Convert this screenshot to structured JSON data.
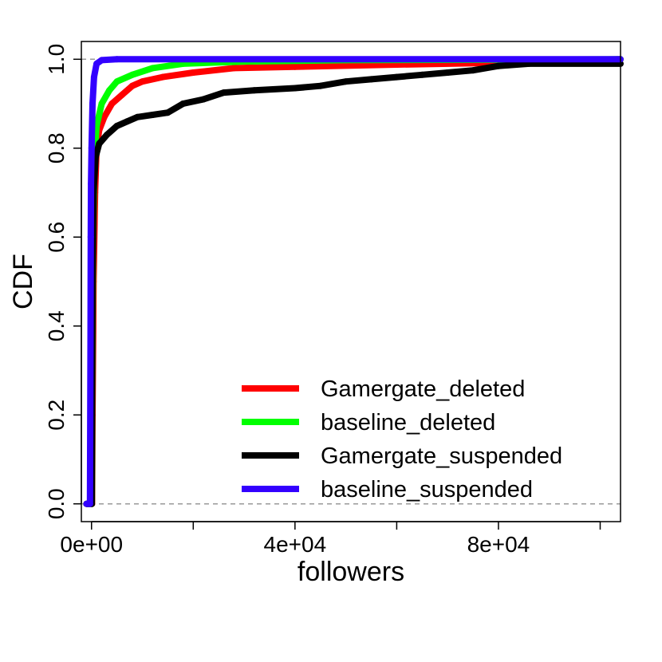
{
  "chart_data": {
    "type": "line",
    "xlabel": "followers",
    "ylabel": "CDF",
    "xlim": [
      -2000,
      104000
    ],
    "ylim": [
      -0.04,
      1.04
    ],
    "x_ticks": [
      0,
      20000,
      40000,
      60000,
      80000,
      100000
    ],
    "x_tick_labels": [
      "0e+00",
      "",
      "4e+04",
      "",
      "8e+04",
      ""
    ],
    "y_ticks": [
      0.0,
      0.2,
      0.4,
      0.6,
      0.8,
      1.0
    ],
    "y_tick_labels": [
      "0.0",
      "0.2",
      "0.4",
      "0.6",
      "0.8",
      "1.0"
    ],
    "reference_lines": [
      0,
      1
    ],
    "grid": false,
    "legend_position": "bottom-right",
    "series": [
      {
        "name": "Gamergate_deleted",
        "color": "#ff0000",
        "points": [
          [
            -1000,
            0
          ],
          [
            100,
            0
          ],
          [
            200,
            0.2
          ],
          [
            400,
            0.5
          ],
          [
            700,
            0.7
          ],
          [
            1000,
            0.8
          ],
          [
            1500,
            0.84
          ],
          [
            2500,
            0.87
          ],
          [
            4000,
            0.9
          ],
          [
            6000,
            0.92
          ],
          [
            8000,
            0.94
          ],
          [
            10000,
            0.95
          ],
          [
            14000,
            0.96
          ],
          [
            20000,
            0.97
          ],
          [
            28000,
            0.98
          ],
          [
            40000,
            0.983
          ],
          [
            60000,
            0.988
          ],
          [
            80000,
            0.992
          ],
          [
            104000,
            1.0
          ]
        ]
      },
      {
        "name": "baseline_deleted",
        "color": "#00ff00",
        "points": [
          [
            -1000,
            0
          ],
          [
            50,
            0
          ],
          [
            150,
            0.3
          ],
          [
            300,
            0.6
          ],
          [
            600,
            0.78
          ],
          [
            1000,
            0.85
          ],
          [
            2000,
            0.9
          ],
          [
            3500,
            0.93
          ],
          [
            5000,
            0.95
          ],
          [
            8000,
            0.965
          ],
          [
            12000,
            0.98
          ],
          [
            18000,
            0.99
          ],
          [
            30000,
            0.995
          ],
          [
            50000,
            0.998
          ],
          [
            104000,
            1.0
          ]
        ]
      },
      {
        "name": "Gamergate_suspended",
        "color": "#000000",
        "points": [
          [
            -1000,
            0
          ],
          [
            50,
            0
          ],
          [
            100,
            0.2
          ],
          [
            200,
            0.5
          ],
          [
            400,
            0.7
          ],
          [
            800,
            0.78
          ],
          [
            1500,
            0.81
          ],
          [
            3000,
            0.83
          ],
          [
            5000,
            0.85
          ],
          [
            7000,
            0.86
          ],
          [
            9000,
            0.87
          ],
          [
            12000,
            0.875
          ],
          [
            15000,
            0.88
          ],
          [
            18000,
            0.9
          ],
          [
            22000,
            0.91
          ],
          [
            26000,
            0.925
          ],
          [
            32000,
            0.93
          ],
          [
            40000,
            0.935
          ],
          [
            45000,
            0.94
          ],
          [
            50000,
            0.95
          ],
          [
            55000,
            0.955
          ],
          [
            60000,
            0.96
          ],
          [
            65000,
            0.965
          ],
          [
            70000,
            0.97
          ],
          [
            75000,
            0.975
          ],
          [
            80000,
            0.985
          ],
          [
            86000,
            0.99
          ],
          [
            104000,
            0.99
          ]
        ]
      },
      {
        "name": "baseline_suspended",
        "color": "#3300ff",
        "points": [
          [
            -1000,
            0
          ],
          [
            -300,
            0
          ],
          [
            -200,
            0.38
          ],
          [
            -150,
            0.6
          ],
          [
            -100,
            0.72
          ],
          [
            0,
            0.8
          ],
          [
            200,
            0.9
          ],
          [
            500,
            0.96
          ],
          [
            1000,
            0.99
          ],
          [
            2000,
            0.998
          ],
          [
            5000,
            1.0
          ],
          [
            104000,
            1.0
          ]
        ]
      }
    ]
  }
}
